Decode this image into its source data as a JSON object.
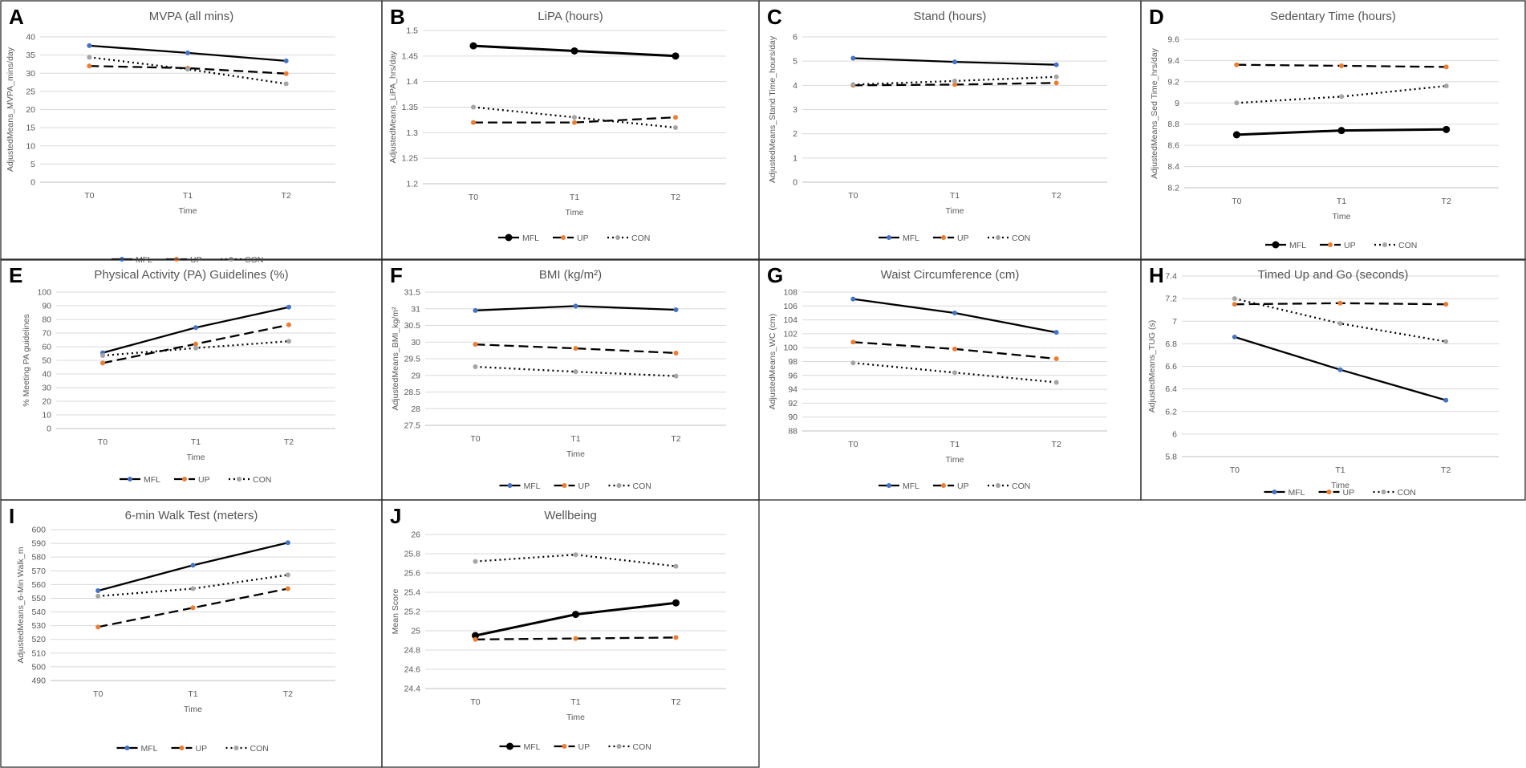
{
  "colors": {
    "mfl_marker": "#4472c4",
    "up_marker": "#ed7d31",
    "con_marker": "#a5a5a5",
    "line": "#000000"
  },
  "legend_labels": [
    "MFL",
    "UP",
    "CON"
  ],
  "chart_data": [
    {
      "panel": "A",
      "type": "line",
      "title": "MVPA (all mins)",
      "xlabel": "Time",
      "ylabel": "AdjustedMeans_MVPA_mins/day",
      "categories": [
        "T0",
        "T1",
        "T2"
      ],
      "ylim": [
        0,
        40
      ],
      "ystep": 5,
      "ytick_labels": [
        "0",
        "5",
        "10",
        "15",
        "20",
        "25",
        "30",
        "35",
        "40"
      ],
      "series": [
        {
          "name": "MFL",
          "values": [
            37.6,
            35.6,
            33.4
          ]
        },
        {
          "name": "UP",
          "values": [
            32.0,
            31.4,
            29.9
          ]
        },
        {
          "name": "CON",
          "values": [
            34.4,
            31.1,
            27.1
          ]
        }
      ]
    },
    {
      "panel": "B",
      "type": "line",
      "title": "LiPA (hours)",
      "xlabel": "Time",
      "ylabel": "AdjustedMeans_LiPA_hrs/day",
      "categories": [
        "T0",
        "T1",
        "T2"
      ],
      "ylim": [
        1.2,
        1.5
      ],
      "ystep": 0.05,
      "ytick_labels": [
        "1.2",
        "1.25",
        "1.3",
        "1.35",
        "1.4",
        "1.45",
        "1.5"
      ],
      "series": [
        {
          "name": "MFL",
          "values": [
            1.47,
            1.46,
            1.45
          ]
        },
        {
          "name": "UP",
          "values": [
            1.32,
            1.32,
            1.33
          ]
        },
        {
          "name": "CON",
          "values": [
            1.35,
            1.33,
            1.31
          ]
        }
      ]
    },
    {
      "panel": "C",
      "type": "line",
      "title": "Stand (hours)",
      "xlabel": "Time",
      "ylabel": "AdjustedMeans_Stand Time_hours/day",
      "categories": [
        "T0",
        "T1",
        "T2"
      ],
      "ylim": [
        0,
        6
      ],
      "ystep": 1,
      "ytick_labels": [
        "0",
        "1",
        "2",
        "3",
        "4",
        "5",
        "6"
      ],
      "series": [
        {
          "name": "MFL",
          "values": [
            5.12,
            4.97,
            4.85
          ]
        },
        {
          "name": "UP",
          "values": [
            4.0,
            4.03,
            4.1
          ]
        },
        {
          "name": "CON",
          "values": [
            4.03,
            4.18,
            4.35
          ]
        }
      ]
    },
    {
      "panel": "D",
      "type": "line",
      "title": "Sedentary Time (hours)",
      "xlabel": "Time",
      "ylabel": "AdjustedMeans_Sed Time_hrs/day",
      "categories": [
        "T0",
        "T1",
        "T2"
      ],
      "ylim": [
        8.2,
        9.6
      ],
      "ystep": 0.2,
      "ytick_labels": [
        "8.2",
        "8.4",
        "8.6",
        "8.8",
        "9",
        "9.2",
        "9.4",
        "9.6"
      ],
      "series": [
        {
          "name": "MFL",
          "values": [
            8.7,
            8.74,
            8.75
          ]
        },
        {
          "name": "UP",
          "values": [
            9.36,
            9.35,
            9.34
          ]
        },
        {
          "name": "CON",
          "values": [
            9.0,
            9.06,
            9.16
          ]
        }
      ]
    },
    {
      "panel": "E",
      "type": "line",
      "title": "Physical Activity (PA) Guidelines (%)",
      "xlabel": "Time",
      "ylabel": "% Meeting PA guidelines",
      "categories": [
        "T0",
        "T1",
        "T2"
      ],
      "ylim": [
        0,
        100
      ],
      "ystep": 10,
      "ytick_labels": [
        "0",
        "10",
        "20",
        "30",
        "40",
        "50",
        "60",
        "70",
        "80",
        "90",
        "100"
      ],
      "series": [
        {
          "name": "MFL",
          "values": [
            55.5,
            74.0,
            89.0
          ]
        },
        {
          "name": "UP",
          "values": [
            48.0,
            62.0,
            76.0
          ]
        },
        {
          "name": "CON",
          "values": [
            53.5,
            59.0,
            64.0
          ]
        }
      ]
    },
    {
      "panel": "F",
      "type": "line",
      "title": "BMI (kg/m²)",
      "xlabel": "Time",
      "ylabel": "AdjustedMeans_BMI_kg/m²",
      "categories": [
        "T0",
        "T1",
        "T2"
      ],
      "ylim": [
        27.5,
        31.5
      ],
      "ystep": 0.5,
      "ytick_labels": [
        "27.5",
        "28",
        "28.5",
        "29",
        "29.5",
        "30",
        "30.5",
        "31",
        "31.5"
      ],
      "series": [
        {
          "name": "MFL",
          "values": [
            30.95,
            31.08,
            30.97
          ]
        },
        {
          "name": "UP",
          "values": [
            29.93,
            29.81,
            29.67
          ]
        },
        {
          "name": "CON",
          "values": [
            29.26,
            29.11,
            28.98
          ]
        }
      ]
    },
    {
      "panel": "G",
      "type": "line",
      "title": "Waist Circumference (cm)",
      "xlabel": "Time",
      "ylabel": "AdjustedMeans_WC (cm)",
      "categories": [
        "T0",
        "T1",
        "T2"
      ],
      "ylim": [
        88,
        108
      ],
      "ystep": 2,
      "ytick_labels": [
        "88",
        "90",
        "92",
        "94",
        "96",
        "98",
        "100",
        "102",
        "104",
        "106",
        "108"
      ],
      "series": [
        {
          "name": "MFL",
          "values": [
            107.0,
            105.0,
            102.2
          ]
        },
        {
          "name": "UP",
          "values": [
            100.8,
            99.8,
            98.4
          ]
        },
        {
          "name": "CON",
          "values": [
            97.8,
            96.4,
            95.0
          ]
        }
      ]
    },
    {
      "panel": "H",
      "type": "line",
      "title": "Timed Up and Go (seconds)",
      "xlabel": "Time",
      "ylabel": "AdjustedMeans_TUG (s)",
      "categories": [
        "T0",
        "T1",
        "T2"
      ],
      "ylim": [
        5.8,
        7.4
      ],
      "ystep": 0.2,
      "ytick_labels": [
        "5.8",
        "6",
        "6.2",
        "6.4",
        "6.6",
        "6.8",
        "7",
        "7.2",
        "7.4"
      ],
      "series": [
        {
          "name": "MFL",
          "values": [
            6.86,
            6.57,
            6.3
          ]
        },
        {
          "name": "UP",
          "values": [
            7.15,
            7.16,
            7.15
          ]
        },
        {
          "name": "CON",
          "values": [
            7.2,
            6.98,
            6.82
          ]
        }
      ]
    },
    {
      "panel": "I",
      "type": "line",
      "title": "6-min Walk Test (meters)",
      "xlabel": "Time",
      "ylabel": "AdjustedMeans_6-Min Walk_m",
      "categories": [
        "T0",
        "T1",
        "T2"
      ],
      "ylim": [
        490,
        600
      ],
      "ystep": 10,
      "ytick_labels": [
        "490",
        "500",
        "510",
        "520",
        "530",
        "540",
        "550",
        "560",
        "570",
        "580",
        "590",
        "600"
      ],
      "series": [
        {
          "name": "MFL",
          "values": [
            555.5,
            574.0,
            590.5
          ]
        },
        {
          "name": "UP",
          "values": [
            529.0,
            543.0,
            557.0
          ]
        },
        {
          "name": "CON",
          "values": [
            551.5,
            557.0,
            567.0
          ]
        }
      ]
    },
    {
      "panel": "J",
      "type": "line",
      "title": "Wellbeing",
      "xlabel": "Time",
      "ylabel": "Mean Score",
      "categories": [
        "T0",
        "T1",
        "T2"
      ],
      "ylim": [
        24.4,
        26.0
      ],
      "ystep": 0.2,
      "ytick_labels": [
        "24.4",
        "24.6",
        "24.8",
        "25",
        "25.2",
        "25.4",
        "25.6",
        "25.8",
        "26"
      ],
      "series": [
        {
          "name": "MFL",
          "values": [
            24.95,
            25.17,
            25.29
          ]
        },
        {
          "name": "UP",
          "values": [
            24.91,
            24.92,
            24.93
          ]
        },
        {
          "name": "CON",
          "values": [
            25.72,
            25.79,
            25.67
          ]
        }
      ]
    }
  ]
}
